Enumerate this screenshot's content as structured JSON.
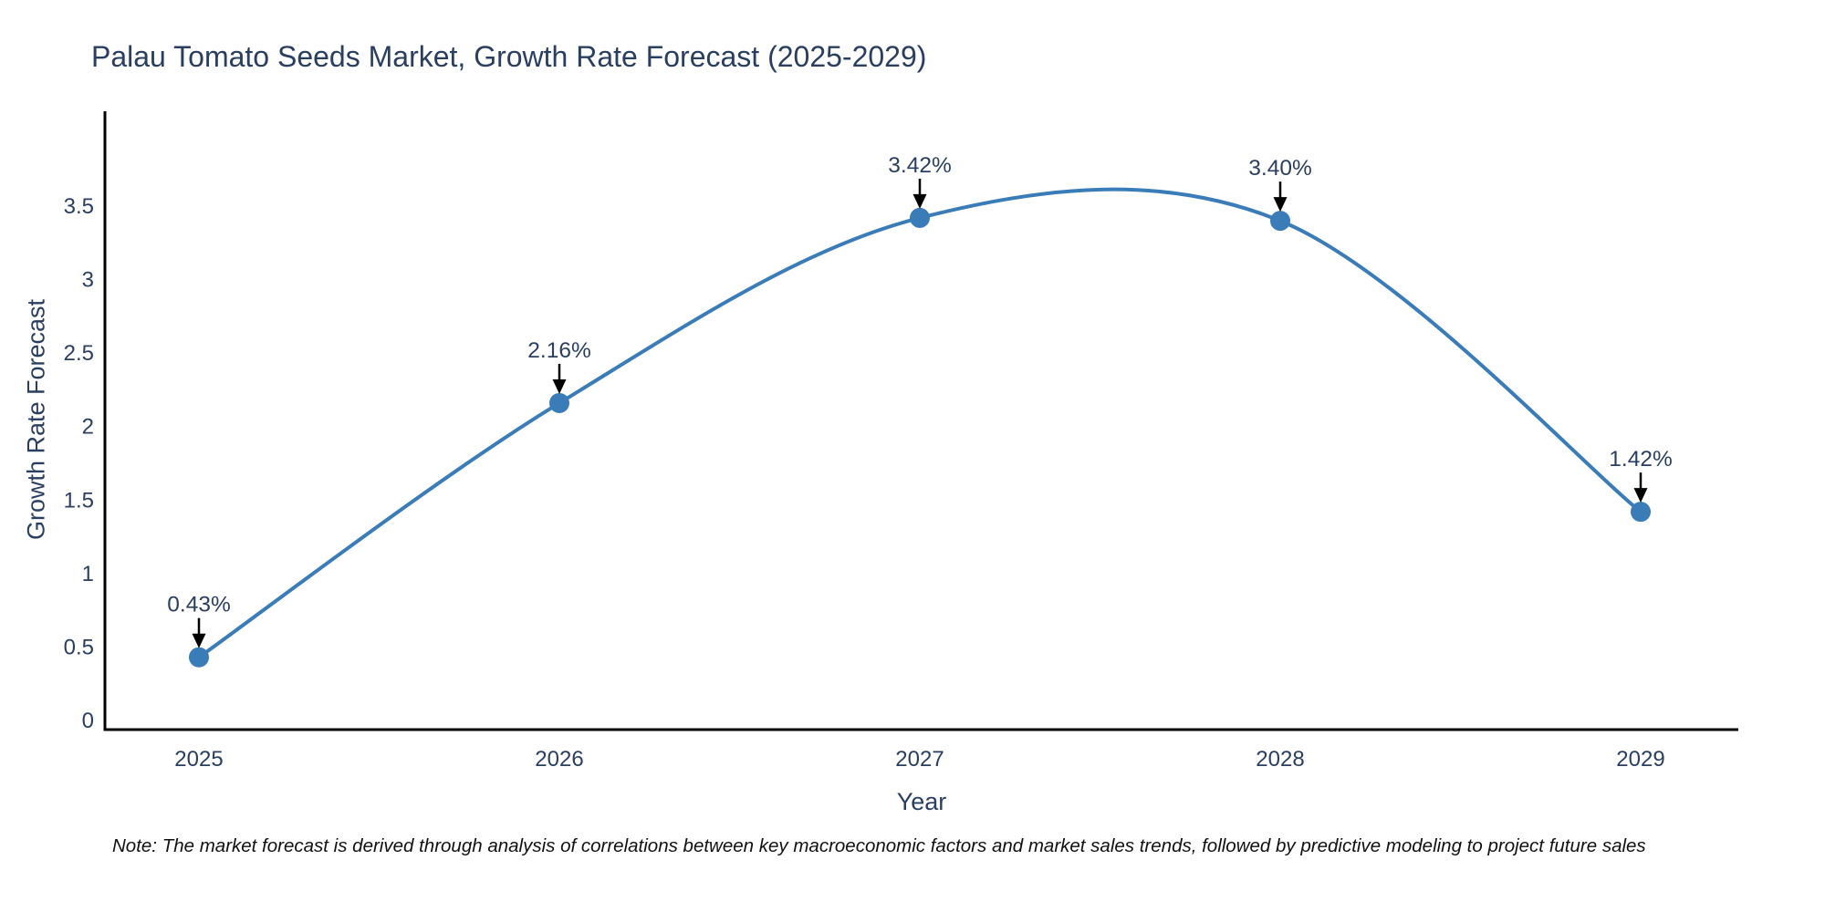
{
  "title": "Palau Tomato Seeds Market, Growth Rate Forecast (2025-2029)",
  "note": "Note: The market forecast is derived through analysis of correlations between key macroeconomic factors and market sales trends, followed by predictive modeling to project future sales",
  "chart_data": {
    "type": "line",
    "title": "Palau Tomato Seeds Market, Growth Rate Forecast (2025-2029)",
    "xlabel": "Year",
    "ylabel": "Growth Rate Forecast",
    "categories": [
      "2025",
      "2026",
      "2027",
      "2028",
      "2029"
    ],
    "values": [
      0.43,
      2.16,
      3.42,
      3.4,
      1.42
    ],
    "point_labels": [
      "0.43%",
      "2.16%",
      "3.42%",
      "3.40%",
      "1.42%"
    ],
    "ytick_labels": [
      "0",
      "0.5",
      "1",
      "1.5",
      "2",
      "2.5",
      "3",
      "3.5"
    ],
    "ytick_values": [
      0,
      0.5,
      1,
      1.5,
      2,
      2.5,
      3,
      3.5
    ],
    "ylim": [
      -0.07,
      4.2
    ],
    "line_shape": "spline",
    "grid": false,
    "legend": false,
    "annotations_style": "down-arrow-to-point",
    "colors": {
      "line": "#3a7cb8",
      "marker": "#3a7cb8",
      "axis": "#000000",
      "tick_text": "#2a3f5f",
      "annotation_text": "#2a3f5f",
      "annotation_arrow": "#000000",
      "background": "#ffffff"
    }
  }
}
